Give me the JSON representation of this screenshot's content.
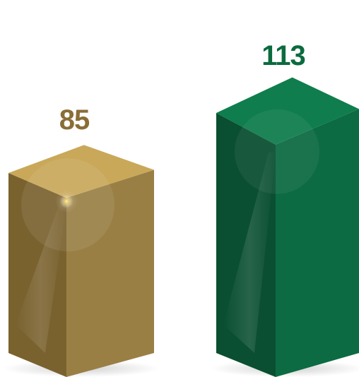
{
  "chart_data": {
    "type": "bar",
    "style": "3d-columns",
    "categories": [
      "",
      ""
    ],
    "values": [
      85,
      113
    ],
    "data_labels": [
      "85",
      "113"
    ],
    "ylim": [
      0,
      113
    ],
    "grid": false,
    "legend": "none",
    "colors": {
      "bar_1_front": "#9a7f45",
      "bar_1_top": "#c9a85a",
      "bar_1_side": "#7a622f",
      "bar_1_label": "#8a6d36",
      "bar_2_front": "#0c6b42",
      "bar_2_top": "#0f7d4d",
      "bar_2_side": "#0a4f31",
      "bar_2_label": "#0b6b3e"
    }
  }
}
